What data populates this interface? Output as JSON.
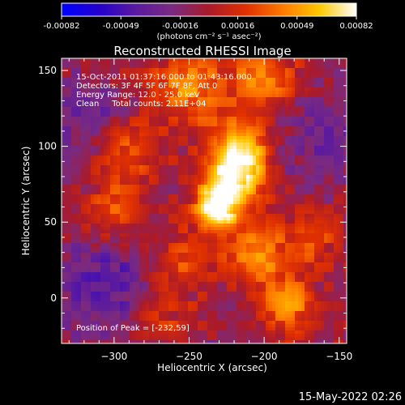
{
  "colorbar": {
    "tick_labels": [
      "-0.00082",
      "-0.00049",
      "-0.00016",
      "0.00016",
      "0.00049",
      "0.00082"
    ],
    "range": [
      -0.00082,
      0.00082
    ],
    "units": "(photons cm⁻² s⁻¹ asec⁻²)",
    "colors": [
      "#0000ff",
      "#2200cc",
      "#5a1aa0",
      "#7a2a80",
      "#aa1a2a",
      "#e03000",
      "#ff7a00",
      "#ffc800",
      "#ffffff"
    ]
  },
  "chart_data": {
    "type": "heatmap",
    "title": "Reconstructed RHESSI Image",
    "xlabel": "Heliocentric X (arcsec)",
    "ylabel": "Heliocentric Y (arcsec)",
    "xlim": [
      -335,
      -145
    ],
    "ylim": [
      -30,
      158
    ],
    "x_ticks": [
      -300,
      -250,
      -200,
      -150
    ],
    "y_ticks": [
      0,
      50,
      100,
      150
    ],
    "x_tick_labels": [
      "−300",
      "−250",
      "−200",
      "−150"
    ],
    "y_tick_labels": [
      "0",
      "50",
      "100",
      "150"
    ],
    "grid": false,
    "annotations": [
      "15-Oct-2011 01:37:16.000 to 01:43:16.000",
      "Detectors: 3F 4F 5F 6F 7F 8F, Att 0",
      "Energy Range: 12.0 - 25.0 keV",
      "Clean     Total counts: 2.11E+04"
    ],
    "peak_label": "Position of Peak = [-232,59]",
    "peak": {
      "x": -232,
      "y": 59
    },
    "sources": [
      {
        "x": -232,
        "y": 59,
        "amp": 1.0,
        "w": 10
      },
      {
        "x": -220,
        "y": 80,
        "amp": 0.85,
        "w": 14
      },
      {
        "x": -215,
        "y": 100,
        "amp": 0.6,
        "w": 14
      },
      {
        "x": -250,
        "y": 140,
        "amp": 0.55,
        "w": 18
      },
      {
        "x": -200,
        "y": 145,
        "amp": 0.5,
        "w": 16
      },
      {
        "x": -205,
        "y": 30,
        "amp": 0.55,
        "w": 16
      },
      {
        "x": -185,
        "y": -5,
        "amp": 0.55,
        "w": 14
      },
      {
        "x": -290,
        "y": 95,
        "amp": 0.45,
        "w": 14
      },
      {
        "x": -300,
        "y": 55,
        "amp": 0.4,
        "w": 14
      },
      {
        "x": -165,
        "y": 40,
        "amp": 0.35,
        "w": 12
      },
      {
        "x": -255,
        "y": 25,
        "amp": 0.35,
        "w": 14
      },
      {
        "x": -270,
        "y": -10,
        "amp": 0.3,
        "w": 14
      }
    ],
    "negative_regions": [
      {
        "x": -305,
        "y": 10,
        "amp": 0.7,
        "w": 22
      },
      {
        "x": -320,
        "y": 120,
        "amp": 0.45,
        "w": 18
      },
      {
        "x": -160,
        "y": 105,
        "amp": 0.5,
        "w": 20
      }
    ]
  },
  "footer": {
    "timestamp": "15-May-2022 02:26"
  }
}
